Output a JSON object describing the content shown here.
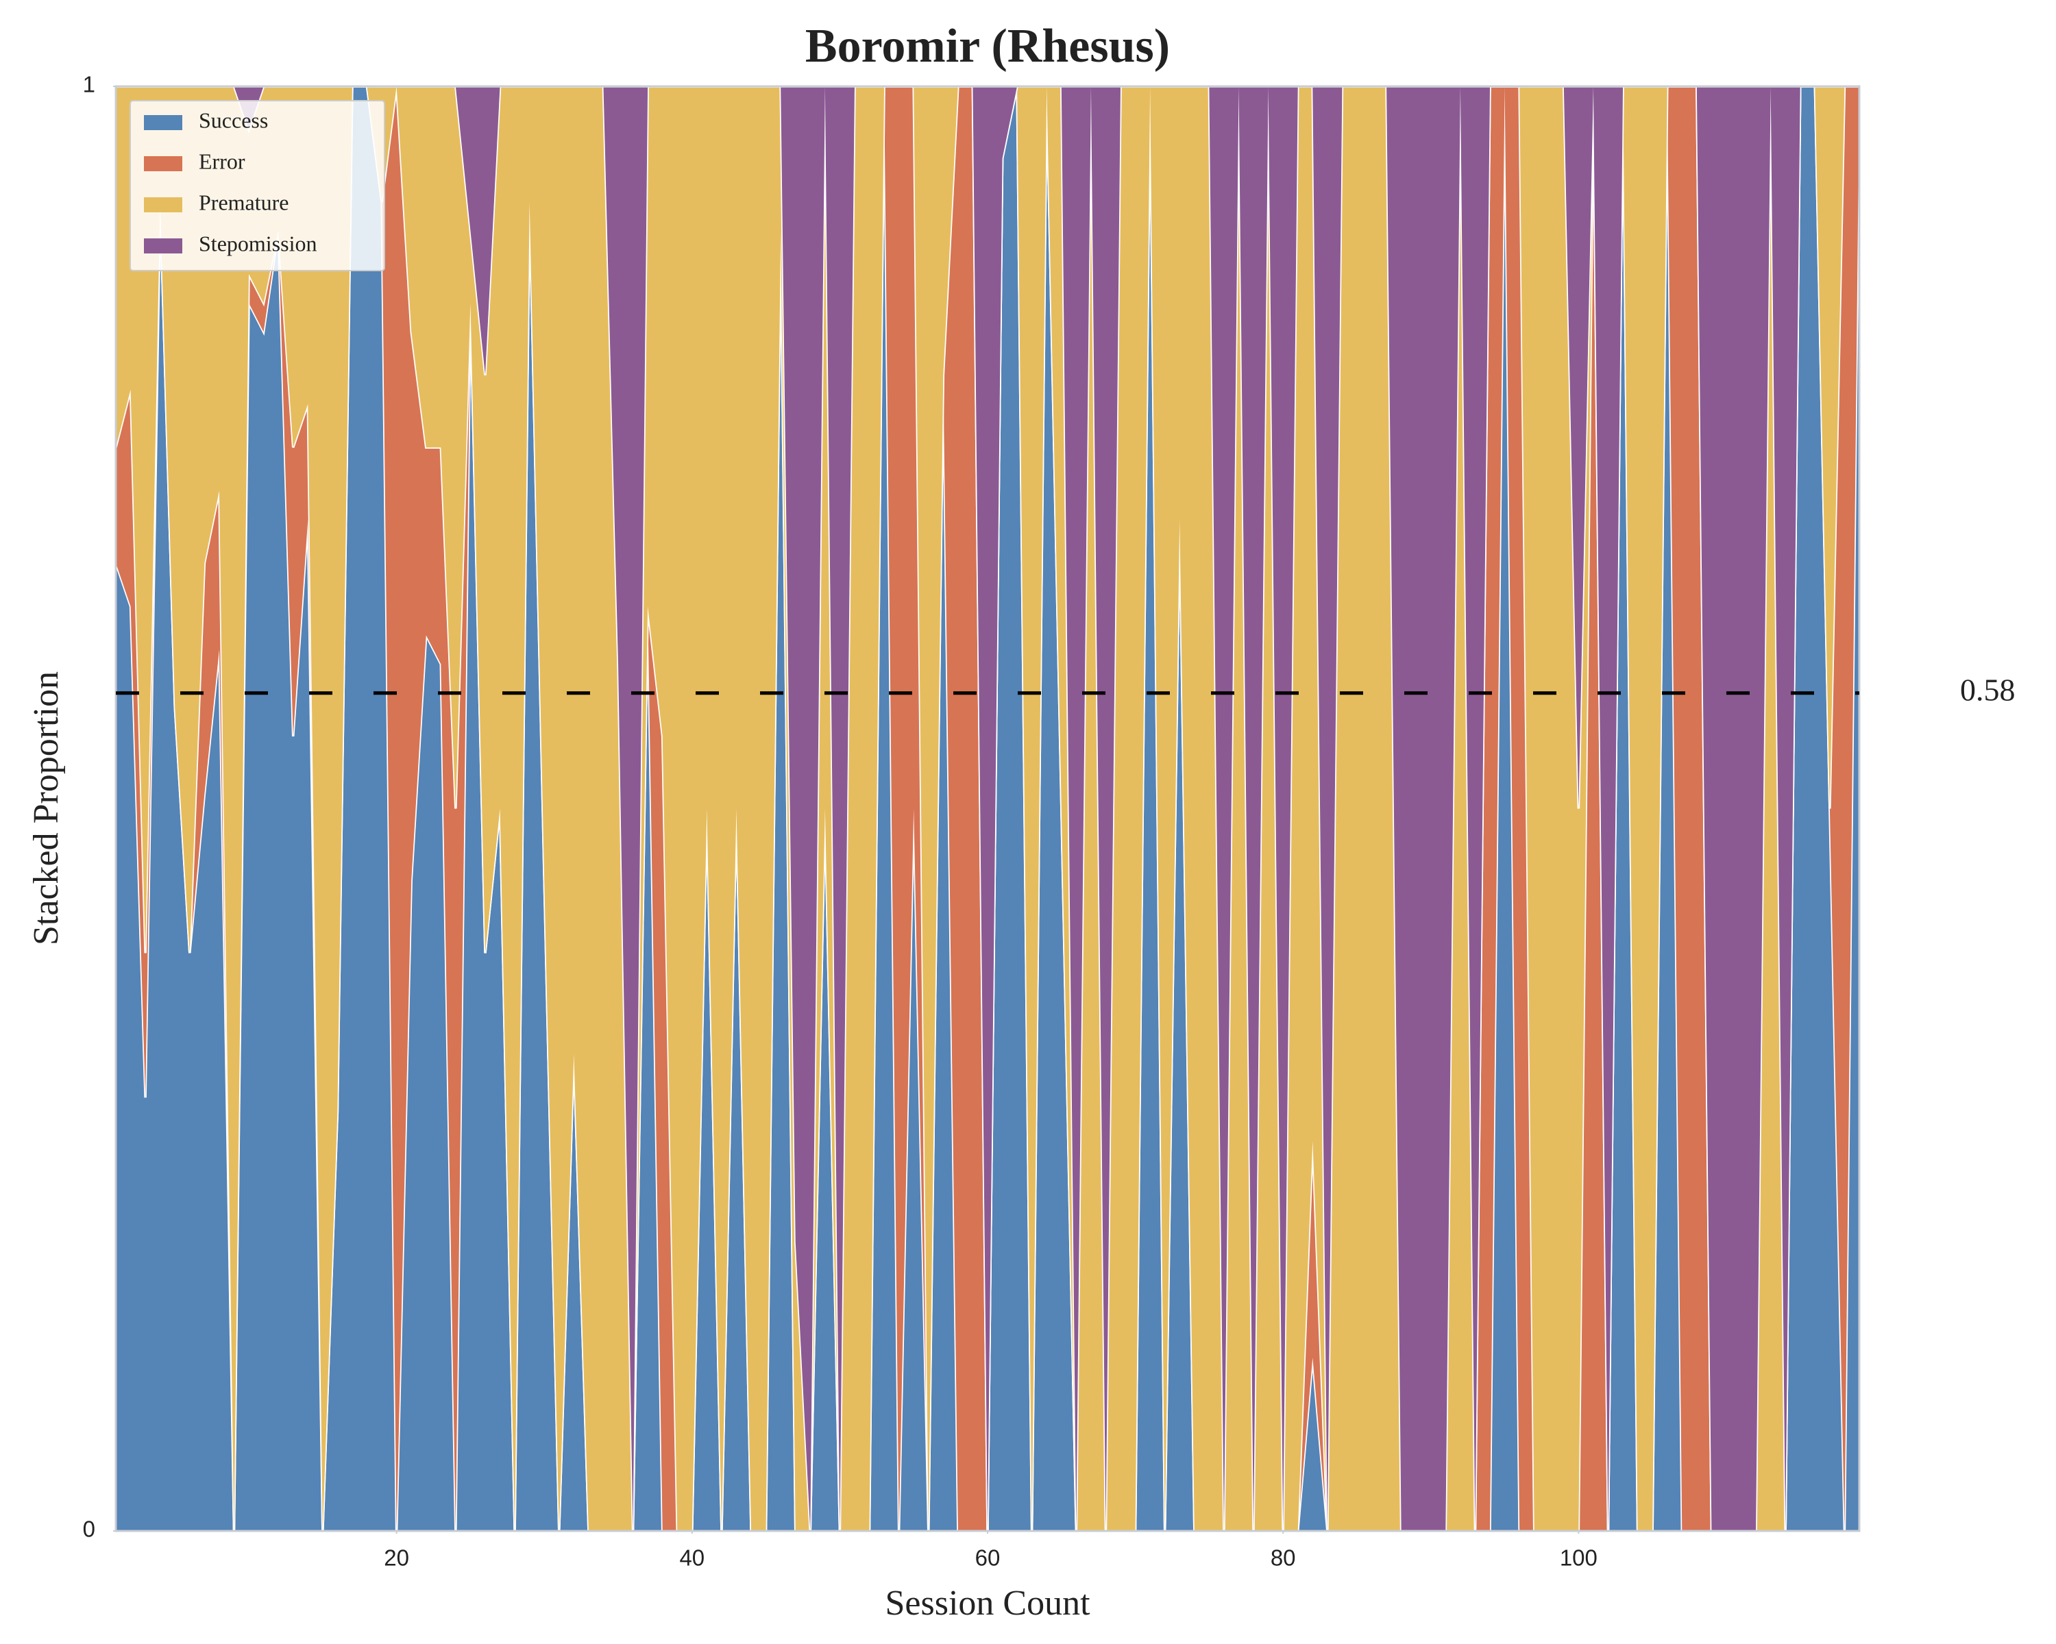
{
  "chart_data": {
    "type": "stacked_area",
    "title": "Boromir (Rhesus)",
    "x_label": "Session Count",
    "y_label": "Stacked Proportion",
    "x": [
      1,
      2,
      3,
      4,
      5,
      6,
      7,
      8,
      9,
      10,
      11,
      12,
      13,
      14,
      15,
      16,
      17,
      18,
      19,
      20,
      21,
      22,
      23,
      24,
      25,
      26,
      27,
      28,
      29,
      30,
      31,
      32,
      33,
      34,
      35,
      36,
      37,
      38,
      39,
      40,
      41,
      42,
      43,
      44,
      45,
      46,
      47,
      48,
      49,
      50,
      51,
      52,
      53,
      54,
      55,
      56,
      57,
      58,
      59,
      60,
      61,
      62,
      63,
      64,
      65,
      66,
      67,
      68,
      69,
      70,
      71,
      72,
      73,
      74,
      75,
      76,
      77,
      78,
      79,
      80,
      81,
      82,
      83,
      84,
      85,
      86,
      87,
      88,
      89,
      90,
      91,
      92,
      93,
      94,
      95,
      96,
      97,
      98,
      99,
      100,
      101,
      102,
      103,
      104,
      105,
      106,
      107,
      108,
      109,
      110,
      111,
      112,
      113,
      114,
      115,
      116,
      117,
      118,
      119
    ],
    "series": [
      {
        "name": "Success",
        "color": "#5584b6",
        "values": [
          0.67,
          0.64,
          0.3,
          0.92,
          0.57,
          0.4,
          0.51,
          0.61,
          0,
          0.85,
          0.83,
          0.9,
          0.55,
          0.7,
          0,
          0.29,
          1,
          1,
          0.92,
          0,
          0.45,
          0.62,
          0.6,
          0,
          0.85,
          0.4,
          0.5,
          0,
          0.92,
          0.45,
          0,
          0.33,
          0,
          0,
          0,
          0,
          0.64,
          0,
          0,
          0,
          0.5,
          0,
          0.5,
          0,
          0,
          0.9,
          0,
          0,
          0.5,
          0,
          0,
          0,
          1,
          0,
          0.5,
          0,
          0.8,
          0,
          0,
          0,
          0.95,
          1,
          0,
          1,
          0.5,
          0,
          0,
          0,
          0,
          0,
          1,
          0,
          0.7,
          0,
          0,
          0,
          0,
          0,
          0,
          0,
          0,
          0.12,
          0,
          0,
          0,
          0,
          0,
          0,
          0,
          0,
          0,
          0,
          0,
          0,
          1,
          0,
          0,
          0,
          0,
          0,
          0,
          0,
          1,
          0,
          0,
          1,
          0,
          0,
          0,
          0,
          0,
          0,
          0,
          0,
          1,
          1,
          0.5,
          0,
          1
        ]
      },
      {
        "name": "Error",
        "color": "#d77454",
        "values": [
          0.08,
          0.15,
          0.1,
          0,
          0,
          0,
          0.16,
          0.11,
          0,
          0.02,
          0.02,
          0,
          0.2,
          0.08,
          0,
          0,
          0,
          0,
          0,
          1,
          0.38,
          0.13,
          0.15,
          0.5,
          0,
          0,
          0,
          0,
          0,
          0,
          0,
          0,
          0,
          0,
          0,
          0,
          0,
          0.55,
          0,
          0,
          0,
          0,
          0,
          0,
          0,
          0,
          0,
          0,
          0,
          0,
          0,
          0,
          0,
          1,
          0.5,
          0,
          0,
          1,
          1,
          0,
          0,
          0,
          0,
          0,
          0,
          0,
          0,
          0,
          0,
          0,
          0,
          0,
          0,
          0,
          0,
          0,
          0,
          0,
          0,
          0,
          0,
          0.15,
          0,
          0,
          0,
          0,
          0,
          0,
          0,
          0,
          0,
          0,
          0,
          1,
          0,
          1,
          0,
          0,
          0,
          0,
          1,
          0,
          0,
          0,
          0,
          0,
          1,
          1,
          0,
          0,
          0,
          0,
          0,
          0,
          0,
          0,
          0,
          1,
          0
        ]
      },
      {
        "name": "Premature",
        "color": "#e6bd5e",
        "values": [
          0.25,
          0.21,
          0.6,
          0.08,
          0.43,
          0.6,
          0.33,
          0.28,
          1,
          0.1,
          0.15,
          0.1,
          0.25,
          0.22,
          1,
          0.71,
          0,
          0,
          0.08,
          0,
          0.17,
          0.25,
          0.25,
          0.5,
          0.05,
          0.4,
          0.5,
          1,
          0.08,
          0.55,
          1,
          0.67,
          1,
          1,
          0.6,
          0,
          0.36,
          0.45,
          1,
          1,
          0.5,
          1,
          0.5,
          1,
          1,
          0.1,
          0.2,
          0,
          0.5,
          0,
          1,
          1,
          0,
          0,
          0,
          1,
          0.2,
          0,
          0,
          0,
          0,
          0,
          1,
          0,
          0.5,
          0,
          1,
          0,
          1,
          1,
          0,
          1,
          0.3,
          1,
          1,
          0,
          1,
          0,
          1,
          0,
          1,
          0.73,
          0,
          1,
          1,
          1,
          1,
          0,
          0,
          0,
          0,
          1,
          0,
          0,
          0,
          0,
          1,
          1,
          1,
          0.5,
          0,
          0,
          0,
          1,
          1,
          0,
          0,
          0,
          0,
          0,
          0,
          0,
          1,
          0,
          0,
          0,
          0.5,
          0,
          0
        ]
      },
      {
        "name": "Stepomission",
        "color": "#8b5a93",
        "values": [
          0,
          0,
          0,
          0,
          0,
          0,
          0,
          0,
          0,
          0.03,
          0,
          0,
          0,
          0,
          0,
          0,
          0,
          0,
          0,
          0,
          0,
          0,
          0,
          0,
          0.1,
          0.2,
          0,
          0,
          0,
          0,
          0,
          0,
          0,
          0,
          0.4,
          1,
          0,
          0,
          0,
          0,
          0,
          0,
          0,
          0,
          0,
          0,
          0.8,
          1,
          0,
          1,
          0,
          0,
          0,
          0,
          0,
          0,
          0,
          0,
          0,
          1,
          0.05,
          0,
          0,
          0,
          0,
          1,
          0,
          1,
          0,
          0,
          0,
          0,
          0,
          0,
          0,
          1,
          0,
          1,
          0,
          1,
          0,
          0,
          1,
          0,
          0,
          0,
          0,
          1,
          1,
          1,
          1,
          0,
          1,
          0,
          0,
          0,
          0,
          0,
          0,
          0.5,
          0,
          1,
          0,
          0,
          0,
          0,
          0,
          0,
          1,
          1,
          1,
          1,
          0,
          1,
          0,
          0,
          0,
          0,
          0
        ]
      }
    ],
    "xlim": [
      1,
      119
    ],
    "ylim": [
      0,
      1
    ],
    "xticks": [
      20,
      40,
      60,
      80,
      100
    ],
    "yticks": [
      0,
      1
    ],
    "reference_line": 0.58,
    "legend": "upper left",
    "grid": false
  }
}
